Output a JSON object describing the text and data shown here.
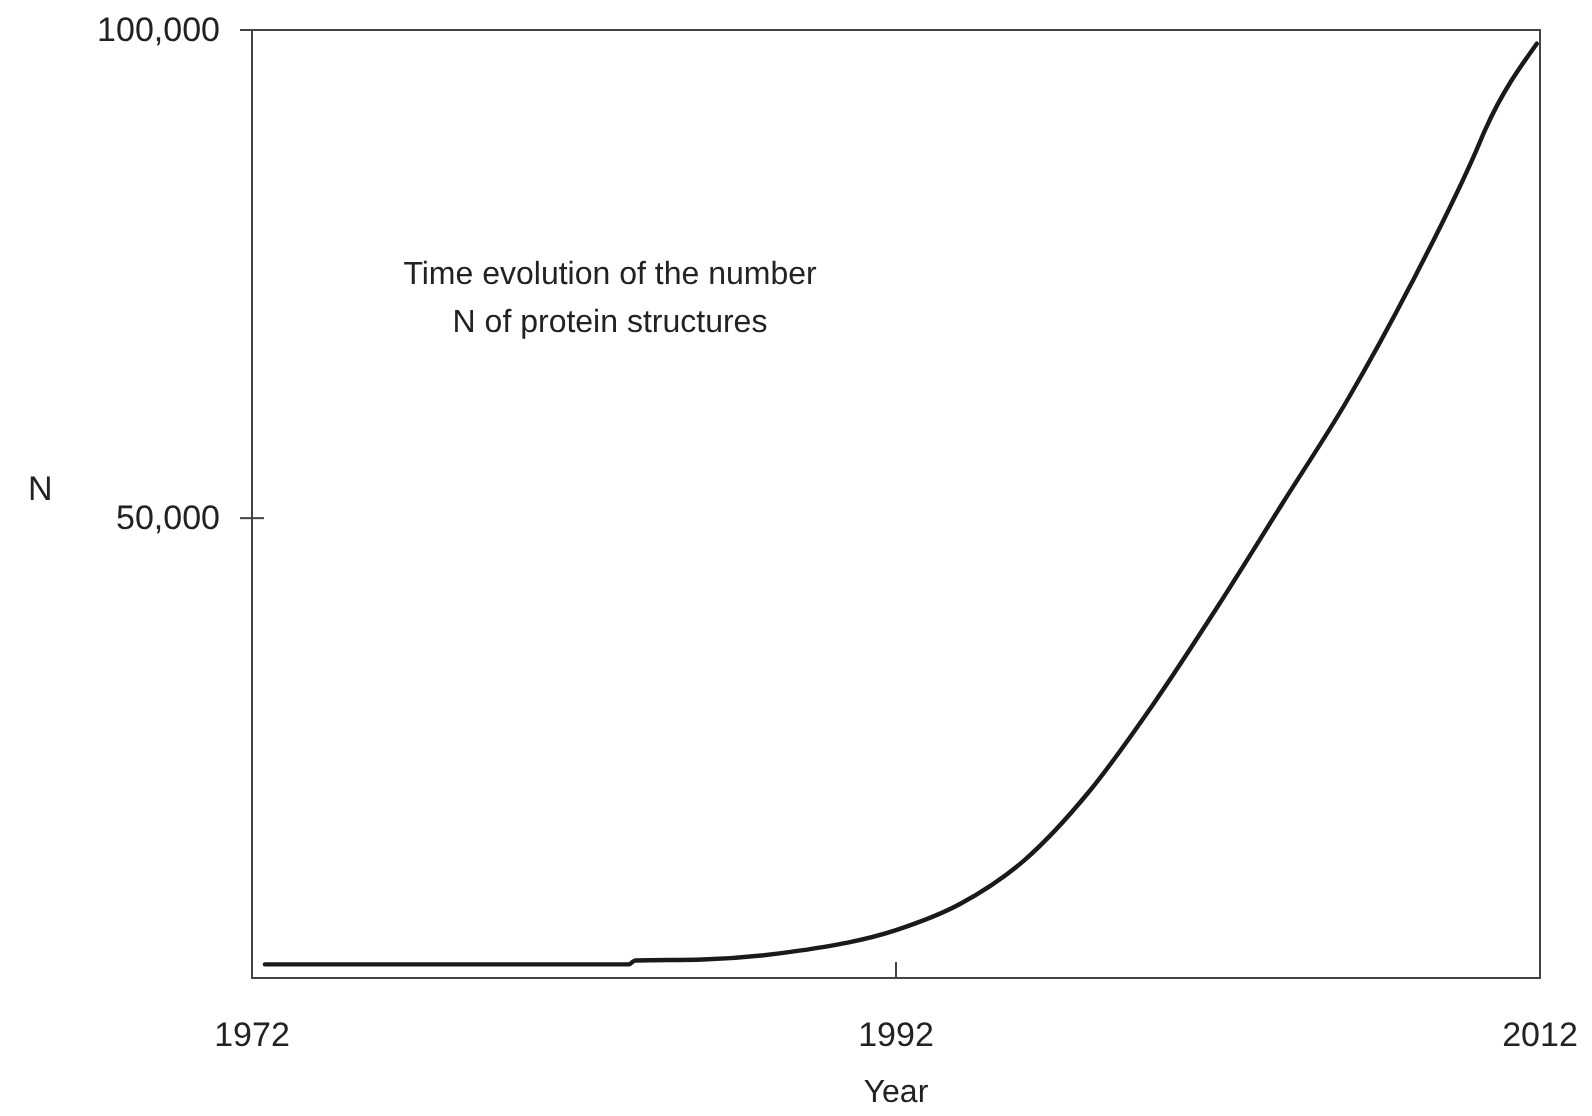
{
  "chart_data": {
    "type": "line",
    "xlabel": "Year",
    "ylabel": "N",
    "annotations": [
      "Time evolution of the number\nN of protein structures"
    ],
    "x": [
      1972.4,
      1983.7,
      1983.9,
      1986,
      1989,
      1992,
      1994,
      1996,
      1998,
      2000,
      2002,
      2004,
      2006,
      2008,
      2010,
      2010.3,
      2011.9
    ],
    "series": [
      {
        "color": "#1a1a1a",
        "values": [
          4300,
          4300,
          4700,
          4800,
          5700,
          7800,
          10500,
          15000,
          22000,
          31000,
          41000,
          51500,
          62000,
          74000,
          87500,
          89800,
          98600
        ]
      }
    ],
    "xlim": [
      1972,
      2012
    ],
    "xticks": [
      1972,
      1992,
      2012
    ],
    "ylim": [
      2900,
      100000
    ],
    "yticks": [
      {
        "value": 50000,
        "label": "50,000"
      },
      {
        "value": 100000,
        "label": "100,000"
      }
    ],
    "marker": "none",
    "line_style": "solid"
  }
}
